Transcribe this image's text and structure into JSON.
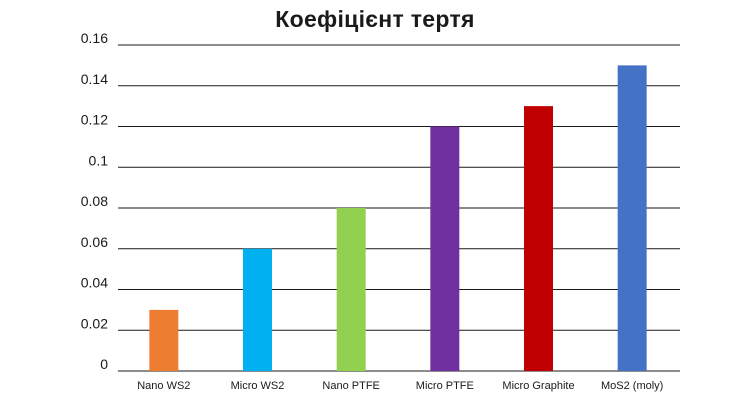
{
  "chart_data": {
    "type": "bar",
    "title": "Коефіцієнт тертя",
    "categories": [
      "Nano WS2",
      "Micro WS2",
      "Nano PTFE",
      "Micro PTFE",
      "Micro Graphite",
      "MoS2 (moly)"
    ],
    "values": [
      0.03,
      0.06,
      0.08,
      0.12,
      0.13,
      0.15
    ],
    "colors": [
      "#ed7d31",
      "#00b0f0",
      "#92d050",
      "#7030a0",
      "#c00000",
      "#4472c4"
    ],
    "yticks": [
      "0",
      "0.02",
      "0.04",
      "0.06",
      "0.08",
      "0.1",
      "0.12",
      "0.14",
      "0.16"
    ],
    "ylim": [
      0,
      0.16
    ],
    "grid": true,
    "xlabel": "",
    "ylabel": ""
  }
}
